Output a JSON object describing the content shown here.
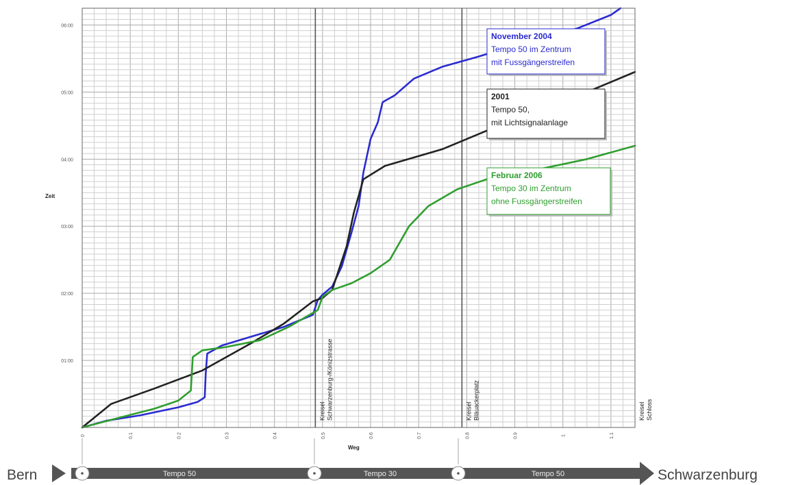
{
  "chart_data": {
    "type": "line",
    "xlabel": "Weg",
    "ylabel": "Zeit",
    "xlim": [
      0,
      1.15
    ],
    "ylim": [
      0,
      6.25
    ],
    "x_ticks": [
      "0",
      "0.1",
      "0.2",
      "0.3",
      "0.4",
      "0.5",
      "0.6",
      "0.7",
      "0.8",
      "0.9",
      "1",
      "1.1"
    ],
    "y_ticks": [
      "01:00",
      "02:00",
      "03:00",
      "04:00",
      "05:00",
      "06:00"
    ],
    "grid": true,
    "series": [
      {
        "key": "nov2004",
        "color": "#2a2ad0",
        "legend_title": "November 2004",
        "legend_lines": [
          "Tempo 50 im Zentrum",
          "mit Fussgängerstreifen"
        ],
        "points": [
          [
            0,
            0
          ],
          [
            0.05,
            0.1
          ],
          [
            0.12,
            0.18
          ],
          [
            0.2,
            0.3
          ],
          [
            0.24,
            0.38
          ],
          [
            0.255,
            0.45
          ],
          [
            0.257,
            0.8
          ],
          [
            0.26,
            1.1
          ],
          [
            0.29,
            1.22
          ],
          [
            0.35,
            1.35
          ],
          [
            0.42,
            1.5
          ],
          [
            0.48,
            1.68
          ],
          [
            0.49,
            1.9
          ],
          [
            0.5,
            1.98
          ],
          [
            0.52,
            2.1
          ],
          [
            0.54,
            2.4
          ],
          [
            0.56,
            2.9
          ],
          [
            0.575,
            3.3
          ],
          [
            0.585,
            3.8
          ],
          [
            0.6,
            4.3
          ],
          [
            0.615,
            4.55
          ],
          [
            0.625,
            4.85
          ],
          [
            0.65,
            4.95
          ],
          [
            0.69,
            5.2
          ],
          [
            0.75,
            5.38
          ],
          [
            0.82,
            5.52
          ],
          [
            0.88,
            5.65
          ],
          [
            0.95,
            5.78
          ],
          [
            1.03,
            5.95
          ],
          [
            1.1,
            6.15
          ],
          [
            1.12,
            6.25
          ]
        ]
      },
      {
        "key": "y2001",
        "color": "#222222",
        "legend_title": "2001",
        "legend_lines": [
          "Tempo 50,",
          "mit Lichtsignalanlage"
        ],
        "points": [
          [
            0,
            0
          ],
          [
            0.06,
            0.35
          ],
          [
            0.15,
            0.58
          ],
          [
            0.25,
            0.85
          ],
          [
            0.35,
            1.25
          ],
          [
            0.42,
            1.55
          ],
          [
            0.48,
            1.88
          ],
          [
            0.5,
            1.93
          ],
          [
            0.52,
            2.05
          ],
          [
            0.55,
            2.7
          ],
          [
            0.565,
            3.2
          ],
          [
            0.585,
            3.7
          ],
          [
            0.63,
            3.9
          ],
          [
            0.75,
            4.15
          ],
          [
            0.85,
            4.45
          ],
          [
            0.95,
            4.7
          ],
          [
            1.05,
            5.0
          ],
          [
            1.15,
            5.3
          ]
        ]
      },
      {
        "key": "feb2006",
        "color": "#2f9e2f",
        "legend_title": "Februar 2006",
        "legend_lines": [
          "Tempo 30 im Zentrum",
          "ohne Fussgängerstreifen"
        ],
        "points": [
          [
            0,
            0
          ],
          [
            0.08,
            0.15
          ],
          [
            0.15,
            0.28
          ],
          [
            0.2,
            0.4
          ],
          [
            0.226,
            0.55
          ],
          [
            0.23,
            1.05
          ],
          [
            0.25,
            1.15
          ],
          [
            0.3,
            1.2
          ],
          [
            0.37,
            1.3
          ],
          [
            0.43,
            1.5
          ],
          [
            0.49,
            1.75
          ],
          [
            0.5,
            1.95
          ],
          [
            0.52,
            2.05
          ],
          [
            0.56,
            2.15
          ],
          [
            0.6,
            2.3
          ],
          [
            0.64,
            2.5
          ],
          [
            0.66,
            2.75
          ],
          [
            0.68,
            3.0
          ],
          [
            0.72,
            3.3
          ],
          [
            0.78,
            3.55
          ],
          [
            0.85,
            3.72
          ],
          [
            0.95,
            3.85
          ],
          [
            1.05,
            4.0
          ],
          [
            1.15,
            4.2
          ]
        ]
      }
    ],
    "markers": [
      {
        "x": 0.485,
        "lines": [
          "Kreisel",
          "Schwarzenburg-/Könizstrasse"
        ]
      },
      {
        "x": 0.79,
        "lines": [
          "Kreisel",
          "Bläuackerplatz"
        ]
      },
      {
        "x": 1.15,
        "lines": [
          "Kreisel",
          "Schloss"
        ]
      }
    ]
  },
  "route": {
    "start": "Bern",
    "end": "Schwarzenburg",
    "segments": [
      "Tempo 50",
      "Tempo 30",
      "Tempo 50"
    ]
  }
}
